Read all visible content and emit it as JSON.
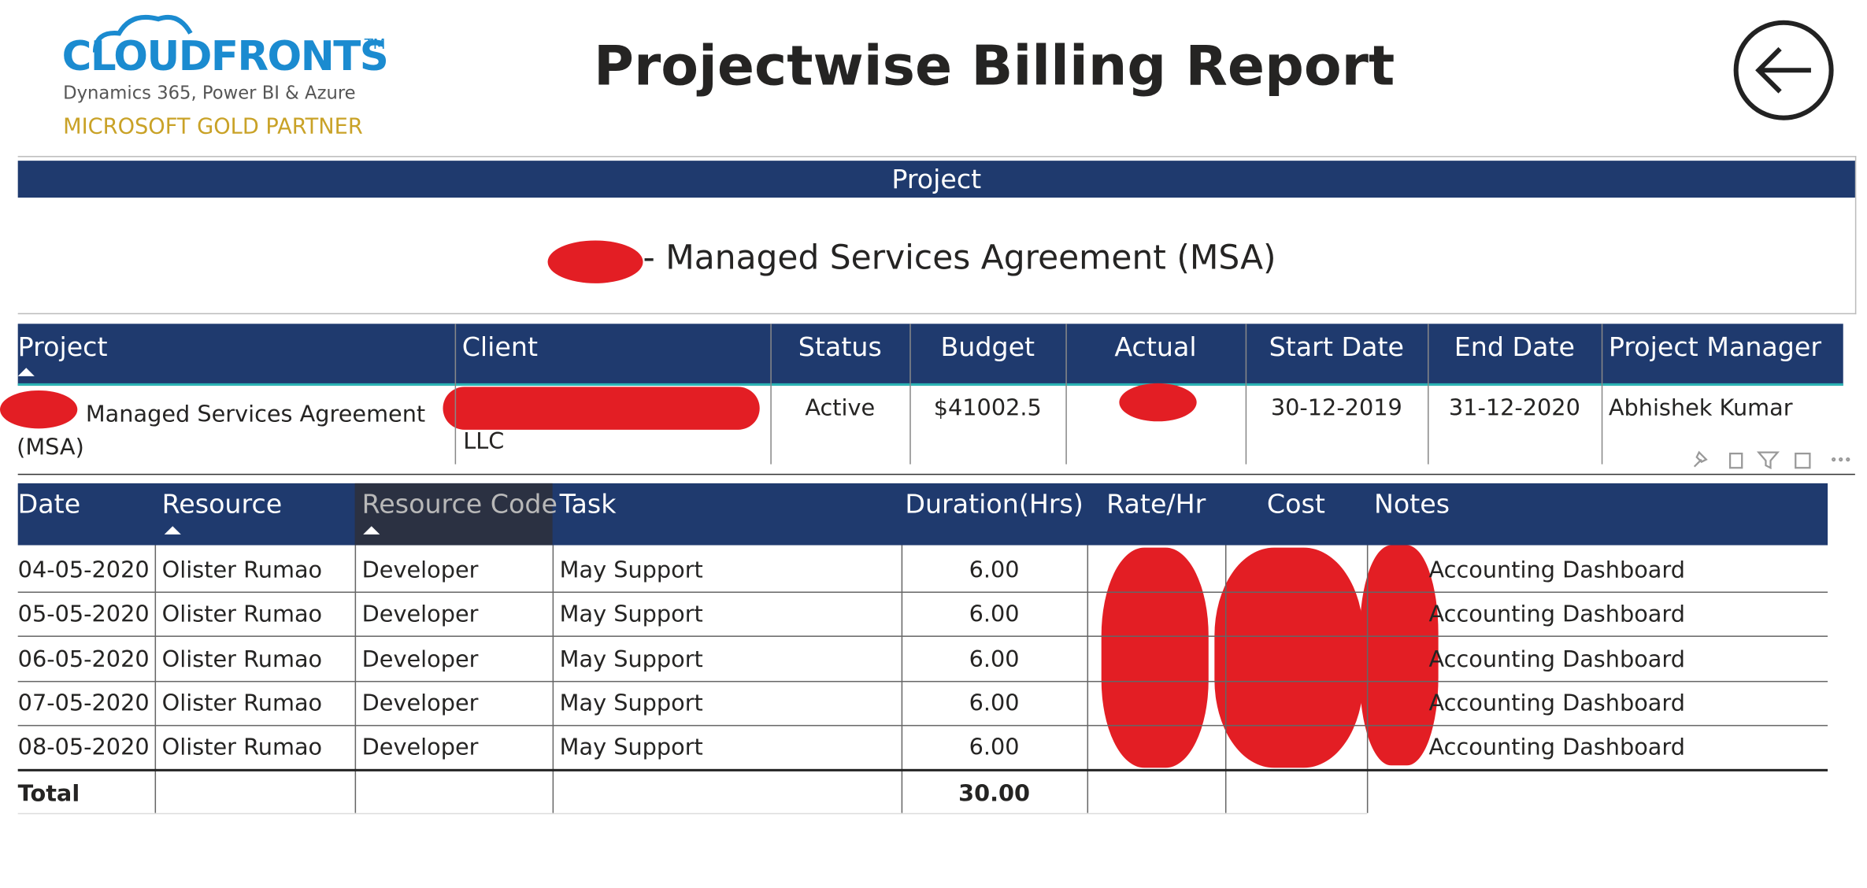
{
  "header": {
    "logo": {
      "brand": "CLOUDFRONTS",
      "trademark": "TM",
      "tagline": "Dynamics 365, Power BI & Azure",
      "partner": "MICROSOFT GOLD PARTNER"
    },
    "title": "Projectwise Billing Report"
  },
  "project_card": {
    "label": "Project",
    "value": "- Managed Services Agreement (MSA)"
  },
  "project_table": {
    "columns": [
      "Project",
      "Client",
      "Status",
      "Budget",
      "Actual",
      "Start Date",
      "End Date",
      "Project Manager"
    ],
    "row": {
      "project": "Managed Services Agreement (MSA)",
      "client": "LLC",
      "status": "Active",
      "budget": "$41002.5",
      "start_date": "30-12-2019",
      "end_date": "31-12-2020",
      "project_manager": "Abhishek Kumar"
    }
  },
  "billing_table": {
    "columns": [
      "Date",
      "Resource",
      "Resource Code",
      "Task",
      "Duration(Hrs)",
      "Rate/Hr",
      "Cost",
      "Notes"
    ],
    "rows": [
      {
        "date": "04-05-2020",
        "resource": "Olister Rumao",
        "resource_code": "Developer",
        "task": "May Support",
        "duration": "6.00",
        "notes": "Accounting Dashboard"
      },
      {
        "date": "05-05-2020",
        "resource": "Olister Rumao",
        "resource_code": "Developer",
        "task": "May Support",
        "duration": "6.00",
        "notes": "Accounting Dashboard"
      },
      {
        "date": "06-05-2020",
        "resource": "Olister Rumao",
        "resource_code": "Developer",
        "task": "May Support",
        "duration": "6.00",
        "notes": "Accounting Dashboard"
      },
      {
        "date": "07-05-2020",
        "resource": "Olister Rumao",
        "resource_code": "Developer",
        "task": "May Support",
        "duration": "6.00",
        "notes": "Accounting Dashboard"
      },
      {
        "date": "08-05-2020",
        "resource": "Olister Rumao",
        "resource_code": "Developer",
        "task": "May Support",
        "duration": "6.00",
        "notes": "Accounting Dashboard"
      }
    ],
    "total": {
      "label": "Total",
      "duration": "30.00"
    }
  }
}
